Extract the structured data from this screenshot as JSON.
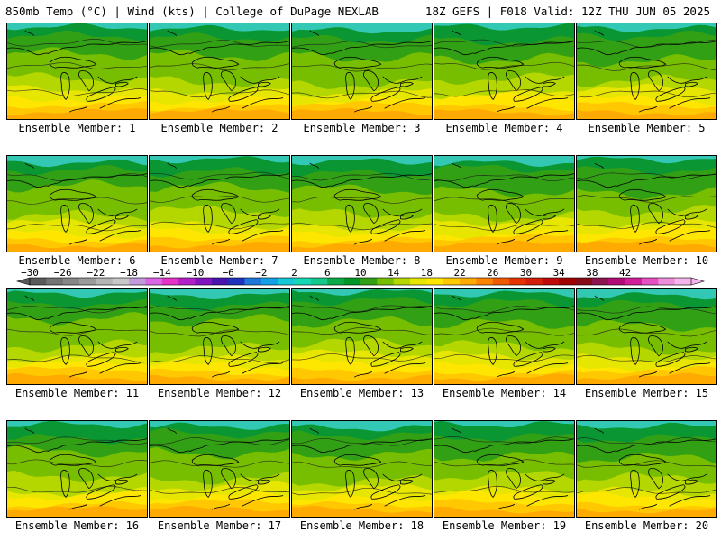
{
  "header": {
    "left": "850mb Temp (°C) | Wind (kts) | College of DuPage NEXLAB",
    "right": "18Z GEFS | F018 Valid: 12Z THU JUN 05 2025"
  },
  "members": [
    "Ensemble Member: 1",
    "Ensemble Member: 2",
    "Ensemble Member: 3",
    "Ensemble Member: 4",
    "Ensemble Member: 5",
    "Ensemble Member: 6",
    "Ensemble Member: 7",
    "Ensemble Member: 8",
    "Ensemble Member: 9",
    "Ensemble Member: 10",
    "Ensemble Member: 11",
    "Ensemble Member: 12",
    "Ensemble Member: 13",
    "Ensemble Member: 14",
    "Ensemble Member: 15",
    "Ensemble Member: 16",
    "Ensemble Member: 17",
    "Ensemble Member: 18",
    "Ensemble Member: 19",
    "Ensemble Member: 20"
  ],
  "colorbar": {
    "ticks": [
      "-30",
      "-26",
      "-22",
      "-18",
      "-14",
      "-10",
      "-6",
      "-2",
      "2",
      "6",
      "10",
      "14",
      "18",
      "22",
      "26",
      "30",
      "34",
      "38",
      "42"
    ],
    "colors": [
      "#5a5a5a",
      "#737373",
      "#878787",
      "#9b9b9b",
      "#b4b4b4",
      "#c8c8c8",
      "#c39bdc",
      "#dc64e6",
      "#e632c8",
      "#b41ec8",
      "#8214be",
      "#4b14af",
      "#1e32be",
      "#1e78dc",
      "#14a0e6",
      "#14c8d7",
      "#14d7b4",
      "#14c88c",
      "#0aaa46",
      "#009628",
      "#32a014",
      "#78be00",
      "#b4d700",
      "#e6e600",
      "#ffe600",
      "#ffc800",
      "#ffaa00",
      "#ff8200",
      "#f05a00",
      "#e63200",
      "#d21e0a",
      "#be0a0a",
      "#a00000",
      "#870a14",
      "#8c1450",
      "#b40a78",
      "#d21e9b",
      "#e650c3",
      "#f08cdc",
      "#f5b4eb"
    ]
  },
  "map_colors": {
    "teal": "#32c8b4",
    "dkgreen": "#0a9632",
    "green": "#32a014",
    "ltgreen": "#78be00",
    "yelgreen": "#b4d700",
    "yellow": "#e6e600",
    "yellow2": "#ffe600",
    "gold": "#ffc800",
    "orange": "#ffaa00"
  }
}
